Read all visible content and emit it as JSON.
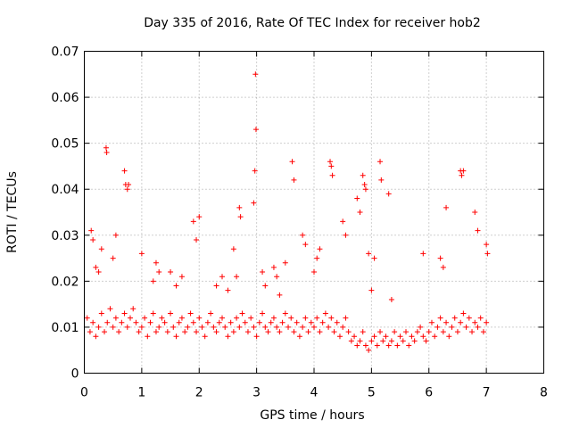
{
  "chart_data": {
    "type": "scatter",
    "title": "Day 335 of 2016, Rate Of TEC Index for receiver hob2",
    "xlabel": "GPS time / hours",
    "ylabel": "ROTI / TECUs",
    "xlim": [
      0,
      8
    ],
    "ylim": [
      0,
      0.07
    ],
    "xticks": [
      "0",
      "1",
      "2",
      "3",
      "4",
      "5",
      "6",
      "7",
      "8"
    ],
    "yticks": [
      "0",
      "0.01",
      "0.02",
      "0.03",
      "0.04",
      "0.05",
      "0.06",
      "0.07"
    ],
    "grid": true,
    "legend": "none",
    "marker": "+",
    "color": "#ff0000",
    "series": [
      {
        "name": "ROTI",
        "x": [
          0.05,
          0.1,
          0.15,
          0.2,
          0.25,
          0.3,
          0.35,
          0.4,
          0.45,
          0.5,
          0.55,
          0.6,
          0.65,
          0.7,
          0.75,
          0.8,
          0.85,
          0.9,
          0.95,
          1.0,
          1.05,
          1.1,
          1.15,
          1.2,
          1.25,
          1.3,
          1.35,
          1.4,
          1.45,
          1.5,
          1.55,
          1.6,
          1.65,
          1.7,
          1.75,
          1.8,
          1.85,
          1.9,
          1.95,
          2.0,
          2.05,
          2.1,
          2.15,
          2.2,
          2.25,
          2.3,
          2.35,
          2.4,
          2.45,
          2.5,
          2.55,
          2.6,
          2.65,
          2.7,
          2.75,
          2.8,
          2.85,
          2.9,
          2.95,
          3.0,
          3.05,
          3.1,
          3.15,
          3.2,
          3.25,
          3.3,
          3.35,
          3.4,
          3.45,
          3.5,
          3.55,
          3.6,
          3.65,
          3.7,
          3.75,
          3.8,
          3.85,
          3.9,
          3.95,
          4.0,
          4.05,
          4.1,
          4.15,
          4.2,
          4.25,
          4.3,
          4.35,
          4.4,
          4.45,
          4.5,
          4.55,
          4.6,
          4.65,
          4.7,
          4.75,
          4.8,
          4.85,
          4.9,
          4.95,
          5.0,
          5.05,
          5.1,
          5.15,
          5.2,
          5.25,
          5.3,
          5.35,
          5.4,
          5.45,
          5.5,
          5.55,
          5.6,
          5.65,
          5.7,
          5.75,
          5.8,
          5.85,
          5.9,
          5.95,
          6.0,
          6.05,
          6.1,
          6.15,
          6.2,
          6.25,
          6.3,
          6.35,
          6.4,
          6.45,
          6.5,
          6.55,
          6.6,
          6.65,
          6.7,
          6.75,
          6.8,
          6.85,
          6.9,
          6.95,
          7.0,
          0.38,
          0.39,
          0.7,
          0.72,
          0.75,
          0.77,
          2.98,
          2.99,
          2.97,
          4.28,
          4.3,
          4.32,
          5.15,
          5.17,
          6.55,
          6.57,
          6.6,
          3.62,
          3.65,
          4.85,
          4.88,
          4.9,
          2.7,
          2.72,
          1.9,
          1.95,
          2.0,
          3.8,
          3.85,
          7.0,
          7.02,
          0.12,
          0.15,
          2.95,
          3.5,
          4.5,
          4.55,
          5.9,
          6.2,
          6.25,
          6.3,
          1.0,
          1.5,
          0.5,
          0.55,
          4.75,
          4.8,
          4.95,
          5.0,
          5.05,
          5.3,
          5.35,
          3.3,
          3.35,
          3.4,
          2.6,
          2.65,
          6.8,
          6.85,
          0.2,
          0.25,
          0.3,
          3.1,
          3.15,
          4.0,
          4.05,
          4.1,
          1.2,
          1.25,
          1.3,
          1.6,
          1.7,
          2.3,
          2.4,
          2.5
        ],
        "y": [
          0.012,
          0.009,
          0.011,
          0.008,
          0.01,
          0.013,
          0.009,
          0.011,
          0.014,
          0.01,
          0.012,
          0.009,
          0.011,
          0.013,
          0.01,
          0.012,
          0.014,
          0.011,
          0.009,
          0.01,
          0.012,
          0.008,
          0.011,
          0.013,
          0.009,
          0.01,
          0.012,
          0.011,
          0.009,
          0.013,
          0.01,
          0.008,
          0.011,
          0.012,
          0.009,
          0.01,
          0.013,
          0.011,
          0.009,
          0.012,
          0.01,
          0.008,
          0.011,
          0.013,
          0.01,
          0.009,
          0.011,
          0.012,
          0.01,
          0.008,
          0.011,
          0.009,
          0.012,
          0.01,
          0.013,
          0.011,
          0.009,
          0.012,
          0.01,
          0.008,
          0.011,
          0.013,
          0.01,
          0.009,
          0.011,
          0.012,
          0.01,
          0.009,
          0.011,
          0.013,
          0.01,
          0.012,
          0.009,
          0.011,
          0.008,
          0.01,
          0.012,
          0.009,
          0.011,
          0.01,
          0.012,
          0.009,
          0.011,
          0.013,
          0.01,
          0.012,
          0.009,
          0.011,
          0.008,
          0.01,
          0.012,
          0.009,
          0.007,
          0.008,
          0.006,
          0.007,
          0.009,
          0.006,
          0.005,
          0.007,
          0.008,
          0.006,
          0.009,
          0.007,
          0.008,
          0.006,
          0.007,
          0.009,
          0.006,
          0.008,
          0.007,
          0.009,
          0.006,
          0.008,
          0.007,
          0.009,
          0.01,
          0.008,
          0.007,
          0.009,
          0.011,
          0.008,
          0.01,
          0.012,
          0.009,
          0.011,
          0.008,
          0.01,
          0.012,
          0.009,
          0.011,
          0.013,
          0.01,
          0.012,
          0.009,
          0.011,
          0.01,
          0.012,
          0.009,
          0.011,
          0.049,
          0.048,
          0.044,
          0.041,
          0.04,
          0.041,
          0.065,
          0.053,
          0.044,
          0.046,
          0.045,
          0.043,
          0.046,
          0.042,
          0.044,
          0.043,
          0.044,
          0.046,
          0.042,
          0.043,
          0.041,
          0.04,
          0.036,
          0.034,
          0.033,
          0.029,
          0.034,
          0.03,
          0.028,
          0.028,
          0.026,
          0.031,
          0.029,
          0.037,
          0.024,
          0.033,
          0.03,
          0.026,
          0.025,
          0.023,
          0.036,
          0.026,
          0.022,
          0.025,
          0.03,
          0.038,
          0.035,
          0.026,
          0.018,
          0.025,
          0.039,
          0.016,
          0.023,
          0.021,
          0.017,
          0.027,
          0.021,
          0.035,
          0.031,
          0.023,
          0.022,
          0.027,
          0.022,
          0.019,
          0.022,
          0.025,
          0.027,
          0.02,
          0.024,
          0.022,
          0.019,
          0.021,
          0.019,
          0.021,
          0.018
        ]
      }
    ]
  }
}
